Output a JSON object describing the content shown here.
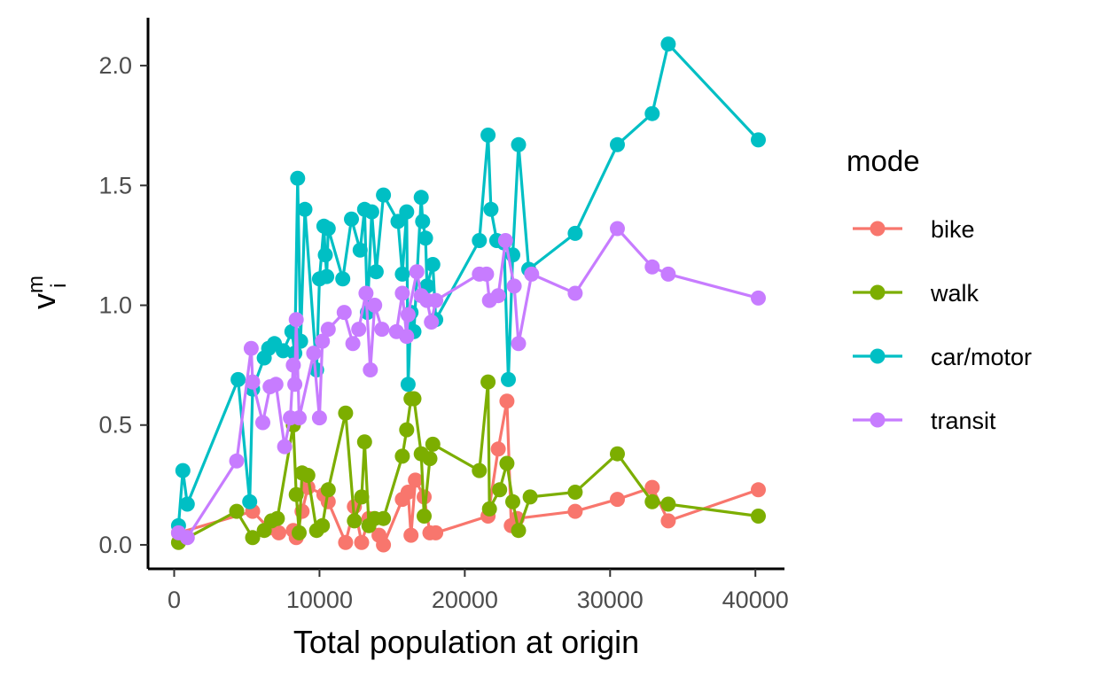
{
  "chart_data": {
    "type": "line",
    "markers": true,
    "xlabel": "Total population at origin",
    "ylabel": "v",
    "ylabel_sup": "m",
    "ylabel_sub": "i",
    "xlim": [
      -1800,
      42000
    ],
    "ylim": [
      -0.1,
      2.2
    ],
    "x_ticks": [
      0,
      10000,
      20000,
      30000,
      40000
    ],
    "x_tick_labels": [
      "0",
      "10000",
      "20000",
      "30000",
      "40000"
    ],
    "y_ticks": [
      0.0,
      0.5,
      1.0,
      1.5,
      2.0
    ],
    "y_tick_labels": [
      "0.0",
      "0.5",
      "1.0",
      "1.5",
      "2.0"
    ],
    "grid": false,
    "legend": {
      "title": "mode",
      "position": "right",
      "entries": [
        "bike",
        "walk",
        "car/motor",
        "transit"
      ]
    },
    "series": [
      {
        "name": "bike",
        "color": "#F8766D",
        "x": [
          300,
          5400,
          6500,
          7200,
          8200,
          8400,
          8800,
          9200,
          10300,
          10600,
          11800,
          12400,
          12900,
          13400,
          14100,
          14400,
          15700,
          16100,
          16300,
          16600,
          17200,
          17600,
          18000,
          21600,
          22300,
          22900,
          23200,
          23600,
          27600,
          30500,
          32900,
          34000,
          40200
        ],
        "y": [
          0.05,
          0.14,
          0.07,
          0.05,
          0.06,
          0.03,
          0.14,
          0.24,
          0.21,
          0.18,
          0.01,
          0.16,
          0.01,
          0.11,
          0.04,
          0.0,
          0.19,
          0.22,
          0.04,
          0.27,
          0.2,
          0.05,
          0.05,
          0.12,
          0.4,
          0.6,
          0.08,
          0.11,
          0.14,
          0.19,
          0.24,
          0.1,
          0.23
        ]
      },
      {
        "name": "walk",
        "color": "#7CAE00",
        "x": [
          300,
          4300,
          5400,
          6200,
          6700,
          7100,
          8200,
          8400,
          8600,
          8800,
          9200,
          9800,
          10200,
          10600,
          11800,
          12400,
          12900,
          13100,
          13400,
          13800,
          14400,
          15700,
          16000,
          16300,
          16500,
          17000,
          17200,
          17600,
          17800,
          21000,
          21600,
          21700,
          22400,
          22900,
          23300,
          23700,
          24500,
          27600,
          30500,
          32900,
          34000,
          40200
        ],
        "y": [
          0.01,
          0.14,
          0.03,
          0.06,
          0.1,
          0.11,
          0.5,
          0.21,
          0.05,
          0.3,
          0.29,
          0.06,
          0.08,
          0.23,
          0.55,
          0.1,
          0.2,
          0.43,
          0.08,
          0.11,
          0.11,
          0.37,
          0.48,
          0.61,
          0.61,
          0.38,
          0.12,
          0.36,
          0.42,
          0.31,
          0.68,
          0.15,
          0.23,
          0.34,
          0.18,
          0.06,
          0.2,
          0.22,
          0.38,
          0.18,
          0.17,
          0.12
        ]
      },
      {
        "name": "car/motor",
        "color": "#00BFC4",
        "x": [
          300,
          600,
          900,
          4400,
          5200,
          5400,
          6200,
          6500,
          6900,
          7500,
          8100,
          8300,
          8500,
          8700,
          9000,
          9800,
          10000,
          10300,
          10400,
          10500,
          10600,
          11600,
          12200,
          12800,
          13100,
          13300,
          13600,
          13900,
          14400,
          15400,
          15700,
          16000,
          16100,
          16300,
          16500,
          17000,
          17100,
          17300,
          17400,
          17800,
          18000,
          21000,
          21600,
          21800,
          22200,
          22700,
          23000,
          23300,
          23700,
          24400,
          27600,
          30500,
          32900,
          34000,
          40200
        ],
        "y": [
          0.08,
          0.31,
          0.17,
          0.69,
          0.18,
          0.65,
          0.78,
          0.82,
          0.84,
          0.81,
          0.89,
          0.8,
          1.53,
          0.85,
          1.4,
          0.73,
          1.11,
          1.33,
          1.21,
          1.12,
          1.32,
          1.11,
          1.36,
          1.23,
          1.4,
          0.97,
          1.39,
          1.14,
          1.46,
          1.35,
          1.13,
          1.39,
          0.67,
          0.97,
          0.89,
          1.45,
          1.35,
          1.28,
          1.08,
          1.17,
          0.94,
          1.27,
          1.71,
          1.4,
          1.27,
          1.26,
          0.69,
          1.21,
          1.67,
          1.15,
          1.3,
          1.67,
          1.8,
          2.09,
          1.69
        ]
      },
      {
        "name": "transit",
        "color": "#C77CFF",
        "x": [
          300,
          900,
          4300,
          5300,
          5400,
          6100,
          6600,
          7000,
          7600,
          8000,
          8200,
          8300,
          8400,
          8600,
          9600,
          10000,
          10200,
          10600,
          11700,
          12300,
          12700,
          13200,
          13500,
          13800,
          14300,
          15300,
          15700,
          16000,
          16100,
          16700,
          17000,
          17400,
          17700,
          18000,
          21000,
          21500,
          21700,
          22300,
          22800,
          23400,
          23700,
          24600,
          27600,
          30500,
          32900,
          34000,
          40200
        ],
        "y": [
          0.05,
          0.03,
          0.35,
          0.82,
          0.68,
          0.51,
          0.66,
          0.67,
          0.41,
          0.53,
          0.75,
          0.67,
          0.94,
          0.53,
          0.8,
          0.53,
          0.85,
          0.9,
          0.97,
          0.84,
          0.9,
          1.05,
          0.73,
          1.0,
          0.9,
          0.89,
          1.05,
          0.87,
          0.96,
          1.14,
          1.04,
          1.02,
          0.93,
          1.02,
          1.13,
          1.13,
          1.02,
          1.04,
          1.27,
          1.08,
          0.84,
          1.13,
          1.05,
          1.32,
          1.16,
          1.13,
          1.03
        ]
      }
    ]
  }
}
